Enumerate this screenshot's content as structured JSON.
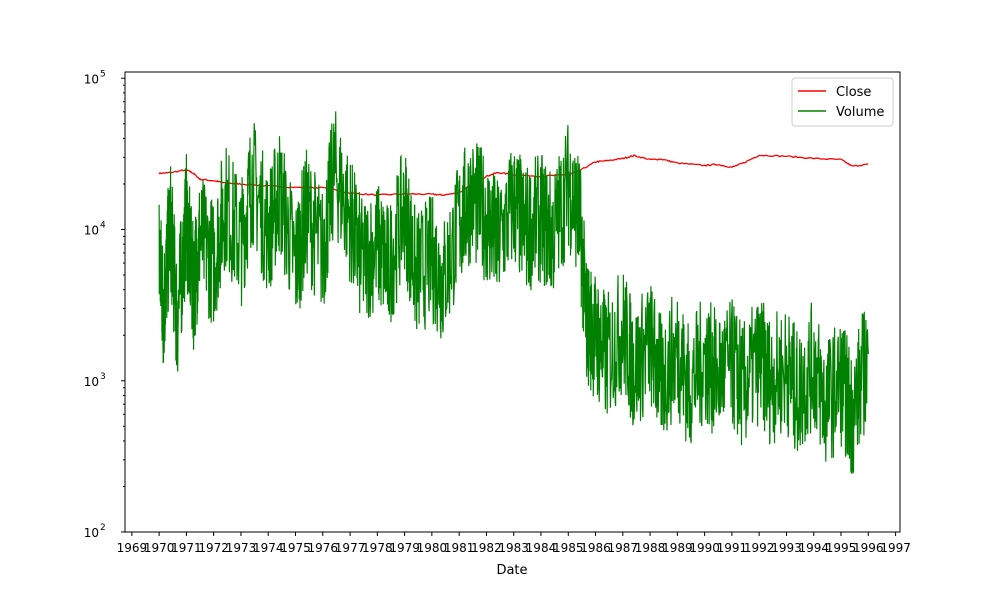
{
  "chart_data": {
    "type": "line",
    "title": "",
    "xlabel": "Date",
    "ylabel": "",
    "y_scale": "log",
    "ylim": [
      100,
      110000
    ],
    "xlim": [
      "1968-10-01",
      "1997-03-01"
    ],
    "x_tick_labels": [
      "1969",
      "1970",
      "1971",
      "1972",
      "1973",
      "1974",
      "1975",
      "1976",
      "1977",
      "1978",
      "1979",
      "1980",
      "1981",
      "1982",
      "1983",
      "1984",
      "1985",
      "1986",
      "1987",
      "1988",
      "1989",
      "1990",
      "1991",
      "1992",
      "1993",
      "1994",
      "1995",
      "1996",
      "1997"
    ],
    "y_tick_labels": [
      {
        "value": 100,
        "base": "10",
        "exp": "2"
      },
      {
        "value": 1000,
        "base": "10",
        "exp": "3"
      },
      {
        "value": 10000,
        "base": "10",
        "exp": "4"
      },
      {
        "value": 100000,
        "base": "10",
        "exp": "5"
      }
    ],
    "grid": false,
    "legend_position": "top-right",
    "series": [
      {
        "name": "Close",
        "color": "#ff0000",
        "points": [
          [
            "1970-01-01",
            23500
          ],
          [
            "1970-06-01",
            23800
          ],
          [
            "1971-01-01",
            24800
          ],
          [
            "1971-04-01",
            23600
          ],
          [
            "1971-07-01",
            21500
          ],
          [
            "1972-01-01",
            21000
          ],
          [
            "1972-06-01",
            20300
          ],
          [
            "1973-01-01",
            20000
          ],
          [
            "1974-01-01",
            19400
          ],
          [
            "1975-01-01",
            19000
          ],
          [
            "1976-01-01",
            18900
          ],
          [
            "1977-01-01",
            17400
          ],
          [
            "1978-01-01",
            16900
          ],
          [
            "1979-01-01",
            17200
          ],
          [
            "1980-01-01",
            17100
          ],
          [
            "1980-06-01",
            16900
          ],
          [
            "1981-01-01",
            17500
          ],
          [
            "1981-06-01",
            19500
          ],
          [
            "1982-01-01",
            22500
          ],
          [
            "1982-06-01",
            23800
          ],
          [
            "1983-01-01",
            23000
          ],
          [
            "1984-01-01",
            22500
          ],
          [
            "1985-01-01",
            23000
          ],
          [
            "1985-06-01",
            24500
          ],
          [
            "1986-01-01",
            28000
          ],
          [
            "1986-06-01",
            28500
          ],
          [
            "1987-01-01",
            29500
          ],
          [
            "1987-06-01",
            30800
          ],
          [
            "1988-01-01",
            29000
          ],
          [
            "1988-06-01",
            29200
          ],
          [
            "1989-01-01",
            27500
          ],
          [
            "1990-01-01",
            26500
          ],
          [
            "1990-06-01",
            27000
          ],
          [
            "1991-01-01",
            25800
          ],
          [
            "1991-06-01",
            27500
          ],
          [
            "1992-01-01",
            31000
          ],
          [
            "1993-01-01",
            30500
          ],
          [
            "1994-01-01",
            29500
          ],
          [
            "1995-01-01",
            29000
          ],
          [
            "1995-06-01",
            26200
          ],
          [
            "1996-01-01",
            27000
          ]
        ]
      },
      {
        "name": "Volume",
        "color": "#008000",
        "points": [
          [
            "1970-01-01",
            7000
          ],
          [
            "1970-03-01",
            3000
          ],
          [
            "1970-06-01",
            11000
          ],
          [
            "1970-09-01",
            2500
          ],
          [
            "1971-01-01",
            12000
          ],
          [
            "1971-04-01",
            4000
          ],
          [
            "1971-07-01",
            9000
          ],
          [
            "1972-01-01",
            6000
          ],
          [
            "1972-06-01",
            15000
          ],
          [
            "1973-01-01",
            8000
          ],
          [
            "1973-06-01",
            22000
          ],
          [
            "1974-01-01",
            9500
          ],
          [
            "1974-06-01",
            18000
          ],
          [
            "1975-01-01",
            6000
          ],
          [
            "1975-06-01",
            13000
          ],
          [
            "1976-01-01",
            7000
          ],
          [
            "1976-06-01",
            25000
          ],
          [
            "1977-01-01",
            12000
          ],
          [
            "1977-06-01",
            6000
          ],
          [
            "1978-01-01",
            8000
          ],
          [
            "1978-06-01",
            5500
          ],
          [
            "1979-01-01",
            14000
          ],
          [
            "1979-06-01",
            5000
          ],
          [
            "1980-01-01",
            6500
          ],
          [
            "1980-06-01",
            4500
          ],
          [
            "1981-01-01",
            11000
          ],
          [
            "1981-06-01",
            16000
          ],
          [
            "1982-01-01",
            12000
          ],
          [
            "1982-06-01",
            8000
          ],
          [
            "1983-01-01",
            15000
          ],
          [
            "1983-06-01",
            10000
          ],
          [
            "1984-01-01",
            12000
          ],
          [
            "1984-06-01",
            9000
          ],
          [
            "1985-01-01",
            20000
          ],
          [
            "1985-06-01",
            12000
          ],
          [
            "1985-09-01",
            2500
          ],
          [
            "1986-01-01",
            2000
          ],
          [
            "1986-06-01",
            1400
          ],
          [
            "1987-01-01",
            2200
          ],
          [
            "1987-06-01",
            1200
          ],
          [
            "1988-01-01",
            1800
          ],
          [
            "1988-06-01",
            1000
          ],
          [
            "1989-01-01",
            1600
          ],
          [
            "1989-06-01",
            900
          ],
          [
            "1990-01-01",
            1400
          ],
          [
            "1990-06-01",
            1100
          ],
          [
            "1991-01-01",
            1300
          ],
          [
            "1991-06-01",
            900
          ],
          [
            "1992-01-01",
            1400
          ],
          [
            "1992-06-01",
            1000
          ],
          [
            "1993-01-01",
            1200
          ],
          [
            "1993-06-01",
            800
          ],
          [
            "1994-01-01",
            1300
          ],
          [
            "1994-06-01",
            700
          ],
          [
            "1995-01-01",
            1000
          ],
          [
            "1995-06-01",
            600
          ],
          [
            "1996-01-01",
            1500
          ]
        ]
      }
    ]
  }
}
